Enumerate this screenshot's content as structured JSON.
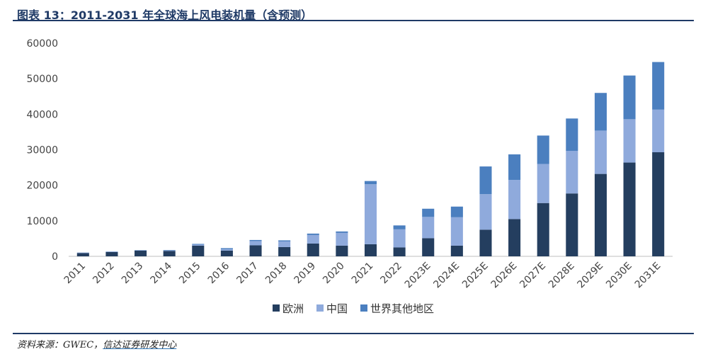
{
  "header": {
    "title": "图表 13：2011-2031 年全球海上风电装机量（含预测）"
  },
  "footer": {
    "source_prefix": "资料来源：GWEC，",
    "source_org": "信达证券研发中心"
  },
  "chart_data": {
    "type": "bar",
    "stacked": true,
    "title": "",
    "xlabel": "",
    "ylabel": "",
    "ylim": [
      0,
      60000
    ],
    "yticks": [
      0,
      10000,
      20000,
      30000,
      40000,
      50000,
      60000
    ],
    "grid": false,
    "legend_position": "bottom",
    "categories": [
      "2011",
      "2012",
      "2013",
      "2014",
      "2015",
      "2016",
      "2017",
      "2018",
      "2019",
      "2020",
      "2021",
      "2022",
      "2023E",
      "2024E",
      "2025E",
      "2026E",
      "2027E",
      "2028E",
      "2029E",
      "2030E",
      "2031E"
    ],
    "series": [
      {
        "name": "欧洲",
        "color": "#243e5f",
        "values": [
          900,
          1200,
          1600,
          1500,
          3000,
          1600,
          3100,
          2600,
          3600,
          3000,
          3400,
          2500,
          5100,
          3000,
          7500,
          10500,
          15000,
          17700,
          23200,
          26400,
          29300
        ]
      },
      {
        "name": "中国",
        "color": "#8faadc",
        "values": [
          100,
          100,
          100,
          100,
          300,
          400,
          1200,
          1600,
          2400,
          3600,
          16900,
          5100,
          6000,
          8000,
          10000,
          11000,
          11000,
          12000,
          12200,
          12200,
          12000
        ]
      },
      {
        "name": "世界其他地区",
        "color": "#4b7fbf",
        "values": [
          50,
          50,
          50,
          150,
          200,
          300,
          300,
          300,
          400,
          400,
          900,
          1100,
          2300,
          3000,
          7800,
          7200,
          8000,
          9100,
          10600,
          12300,
          13400
        ]
      }
    ]
  }
}
